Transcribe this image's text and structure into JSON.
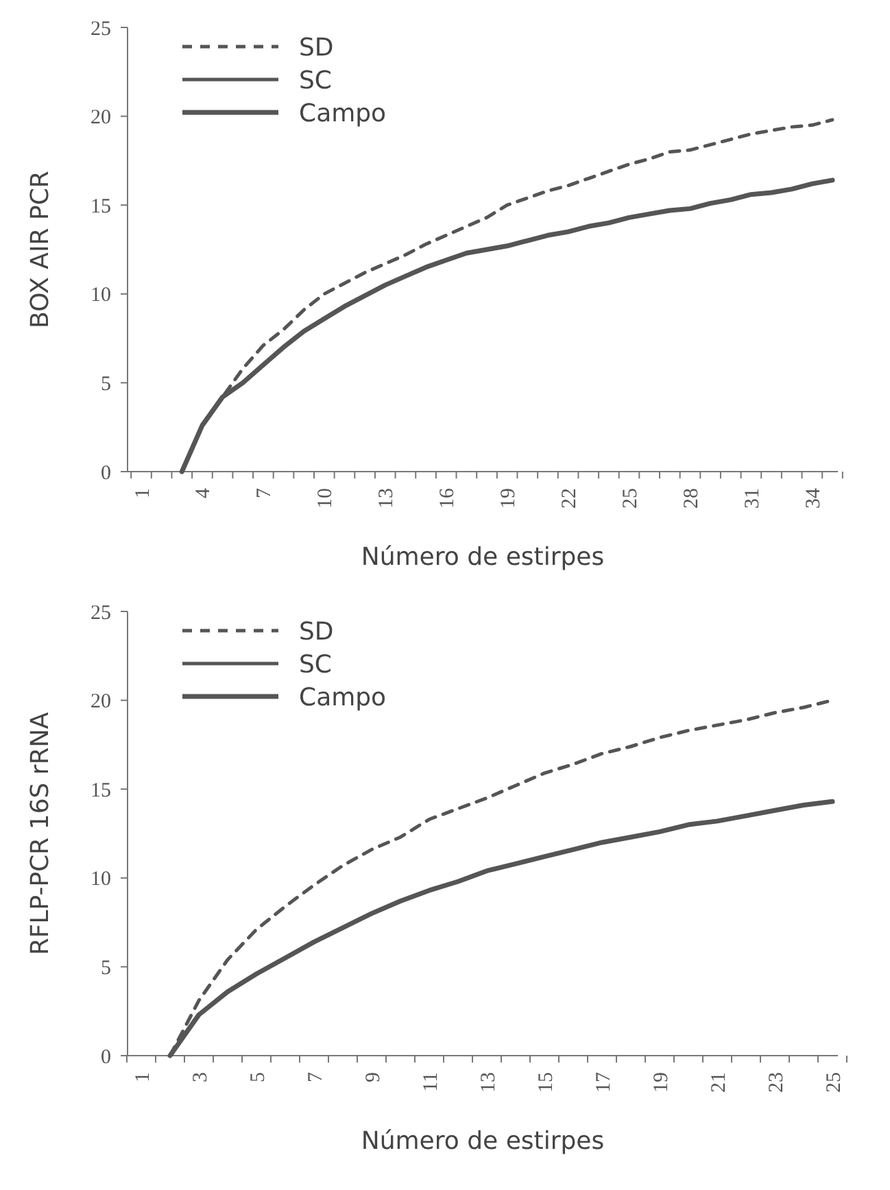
{
  "chart_data": [
    {
      "type": "line",
      "xlabel": "Número de estirpes",
      "ylabel": "BOX AIR PCR",
      "categories": [
        "1",
        null,
        null,
        "4",
        null,
        null,
        "7",
        null,
        null,
        "10",
        null,
        null,
        "13",
        null,
        null,
        "16",
        null,
        null,
        "19",
        null,
        null,
        "22",
        null,
        null,
        "25",
        null,
        null,
        "28",
        null,
        null,
        "31",
        null,
        null,
        "34",
        null
      ],
      "ylim": [
        0,
        25
      ],
      "yticks": [
        0,
        5,
        10,
        15,
        20,
        25
      ],
      "legend": "top left",
      "grid": false,
      "marker": "none",
      "series": [
        {
          "name": "SD",
          "color": "#555555",
          "line_style": "dashed",
          "values": [
            null,
            null,
            0,
            2.6,
            4.2,
            5.8,
            7.1,
            8.0,
            9.1,
            10.0,
            10.6,
            11.2,
            11.7,
            12.2,
            12.8,
            13.3,
            13.8,
            14.3,
            15.0,
            15.4,
            15.8,
            16.1,
            16.5,
            16.9,
            17.3,
            17.6,
            18.0,
            18.1,
            18.4,
            18.7,
            19.0,
            19.2,
            19.4,
            19.5,
            19.8
          ]
        },
        {
          "name": "SC",
          "color": "#555555",
          "line_style": "solid",
          "values": [
            null,
            null,
            null,
            null,
            null,
            null,
            null,
            null,
            null,
            null,
            null,
            null,
            null,
            null,
            null,
            null,
            null,
            null,
            null,
            null,
            null,
            null,
            null,
            null,
            null,
            null,
            null,
            null,
            null,
            null,
            null,
            null,
            null,
            null,
            null
          ]
        },
        {
          "name": "Campo",
          "color": "#555555",
          "line_style": "solid",
          "values": [
            null,
            null,
            0,
            2.6,
            4.2,
            5.0,
            6.0,
            7.0,
            7.9,
            8.6,
            9.3,
            9.9,
            10.5,
            11.0,
            11.5,
            11.9,
            12.3,
            12.5,
            12.7,
            13.0,
            13.3,
            13.5,
            13.8,
            14.0,
            14.3,
            14.5,
            14.7,
            14.8,
            15.1,
            15.3,
            15.6,
            15.7,
            15.9,
            16.2,
            16.4
          ]
        }
      ]
    },
    {
      "type": "line",
      "xlabel": "Número de estirpes",
      "ylabel": "RFLP-PCR 16S rRNA",
      "categories": [
        "1",
        null,
        "3",
        null,
        "5",
        null,
        "7",
        null,
        "9",
        null,
        "11",
        null,
        "13",
        null,
        "15",
        null,
        "17",
        null,
        "19",
        null,
        "21",
        null,
        "23",
        null,
        "25"
      ],
      "ylim": [
        0,
        25
      ],
      "yticks": [
        0,
        5,
        10,
        15,
        20,
        25
      ],
      "legend": "top left",
      "grid": false,
      "marker": "none",
      "series": [
        {
          "name": "SD",
          "color": "#555555",
          "line_style": "dashed",
          "values": [
            null,
            0,
            3.1,
            5.4,
            7.1,
            8.4,
            9.6,
            10.7,
            11.6,
            12.3,
            13.3,
            13.9,
            14.5,
            15.2,
            15.9,
            16.4,
            17.0,
            17.4,
            17.9,
            18.3,
            18.6,
            18.9,
            19.3,
            19.6,
            20.0
          ]
        },
        {
          "name": "SC",
          "color": "#555555",
          "line_style": "solid",
          "values": [
            null,
            null,
            null,
            null,
            null,
            null,
            null,
            null,
            null,
            null,
            null,
            null,
            null,
            null,
            null,
            null,
            null,
            null,
            null,
            null,
            null,
            null,
            null,
            null,
            null
          ]
        },
        {
          "name": "Campo",
          "color": "#555555",
          "line_style": "solid",
          "values": [
            null,
            0,
            2.3,
            3.6,
            4.6,
            5.5,
            6.4,
            7.2,
            8.0,
            8.7,
            9.3,
            9.8,
            10.4,
            10.8,
            11.2,
            11.6,
            12.0,
            12.3,
            12.6,
            13.0,
            13.2,
            13.5,
            13.8,
            14.1,
            14.3
          ]
        }
      ]
    }
  ]
}
